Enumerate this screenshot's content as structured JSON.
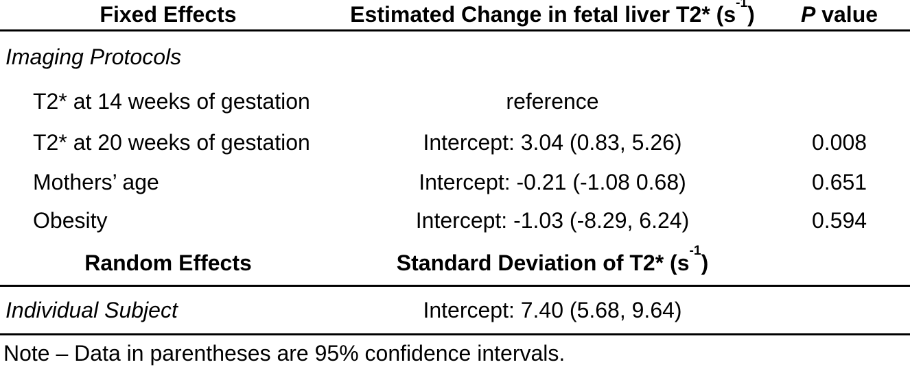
{
  "fixed_effects": {
    "header": {
      "label": "Fixed Effects",
      "estimate_pre": "Estimated Change in fetal liver T2* (s",
      "estimate_sup": "-1",
      "estimate_post": ")",
      "pvalue_symbol": "P",
      "pvalue_rest": " value"
    },
    "group_label": "Imaging Protocols",
    "rows": [
      {
        "label": "T2* at 14 weeks of gestation",
        "estimate": "reference",
        "p": ""
      },
      {
        "label": "T2* at 20 weeks of gestation",
        "estimate": "Intercept: 3.04 (0.83, 5.26)",
        "p": "0.008"
      },
      {
        "label": "Mothers’ age",
        "estimate": "Intercept: -0.21 (-1.08 0.68)",
        "p": "0.651"
      },
      {
        "label": "Obesity",
        "estimate": "Intercept: -1.03 (-8.29, 6.24)",
        "p": "0.594"
      }
    ]
  },
  "random_effects": {
    "header": {
      "label": "Random Effects",
      "estimate_pre": "Standard Deviation of T2* (s",
      "estimate_sup": "-1",
      "estimate_post": ")"
    },
    "rows": [
      {
        "label": "Individual Subject",
        "estimate": "Intercept: 7.40 (5.68, 9.64)",
        "p": ""
      }
    ]
  },
  "note": "Note – Data in parentheses are 95% confidence intervals.",
  "colors": {
    "text": "#000000",
    "background": "#ffffff",
    "rule": "#000000"
  }
}
